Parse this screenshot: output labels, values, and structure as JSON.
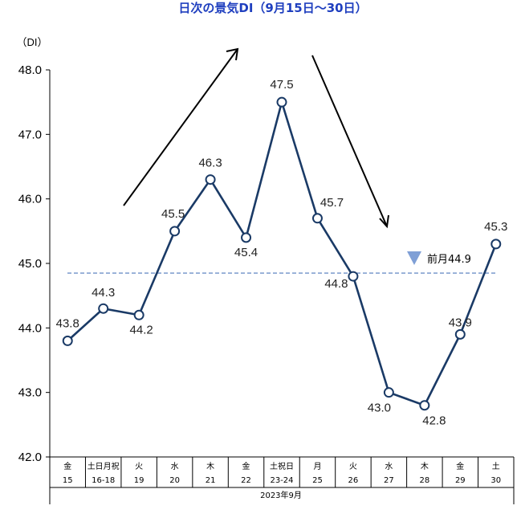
{
  "chart_data": {
    "type": "line",
    "title": "日次の景気DI（9月15日～30日）",
    "ylabel": "（DI）",
    "ylim": [
      42.0,
      48.0
    ],
    "yticks": [
      "42.0",
      "43.0",
      "44.0",
      "45.0",
      "46.0",
      "47.0",
      "48.0"
    ],
    "categories": [
      {
        "day": "金",
        "date": "15"
      },
      {
        "day": "土日月祝",
        "date": "16-18"
      },
      {
        "day": "火",
        "date": "19"
      },
      {
        "day": "水",
        "date": "20"
      },
      {
        "day": "木",
        "date": "21"
      },
      {
        "day": "金",
        "date": "22"
      },
      {
        "day": "土祝日",
        "date": "23-24"
      },
      {
        "day": "月",
        "date": "25"
      },
      {
        "day": "火",
        "date": "26"
      },
      {
        "day": "水",
        "date": "27"
      },
      {
        "day": "木",
        "date": "28"
      },
      {
        "day": "金",
        "date": "29"
      },
      {
        "day": "土",
        "date": "30"
      }
    ],
    "values": [
      43.8,
      44.3,
      44.2,
      45.5,
      46.3,
      45.4,
      47.5,
      45.7,
      44.8,
      43.0,
      42.8,
      43.9,
      45.3
    ],
    "value_labels": [
      "43.8",
      "44.3",
      "44.2",
      "45.5",
      "46.3",
      "45.4",
      "47.5",
      "45.7",
      "44.8",
      "43.0",
      "42.8",
      "43.9",
      "45.3"
    ],
    "reference_line": {
      "label": "前月44.9",
      "value": 44.85
    },
    "xaxis_caption": "2023年9月",
    "colors": {
      "line": "#1a3a66",
      "reference": "#6f90c8",
      "marker_triangle": "#7f9fd6",
      "title": "#1f3fbf"
    }
  }
}
